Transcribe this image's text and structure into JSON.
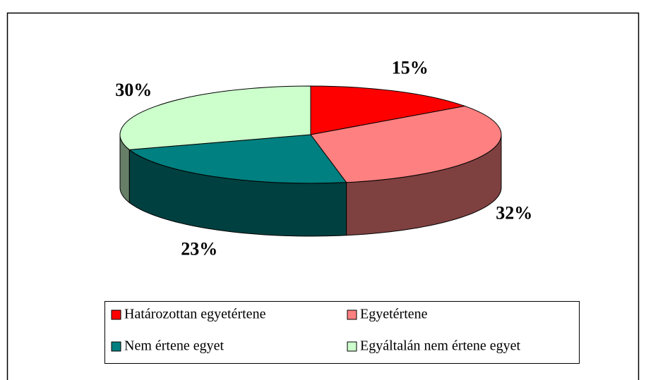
{
  "chart_data": {
    "type": "pie3d",
    "categories": [
      "Határozottan egyetértene",
      "Egyetértene",
      "Nem értene egyet",
      "Egyáltalán nem értene egyet"
    ],
    "values": [
      15,
      32,
      23,
      30
    ],
    "value_labels": [
      "15%",
      "32%",
      "23%",
      "30%"
    ],
    "colors": [
      "#ff0000",
      "#ff8080",
      "#008080",
      "#ccffcc"
    ],
    "legend": "bottom"
  }
}
